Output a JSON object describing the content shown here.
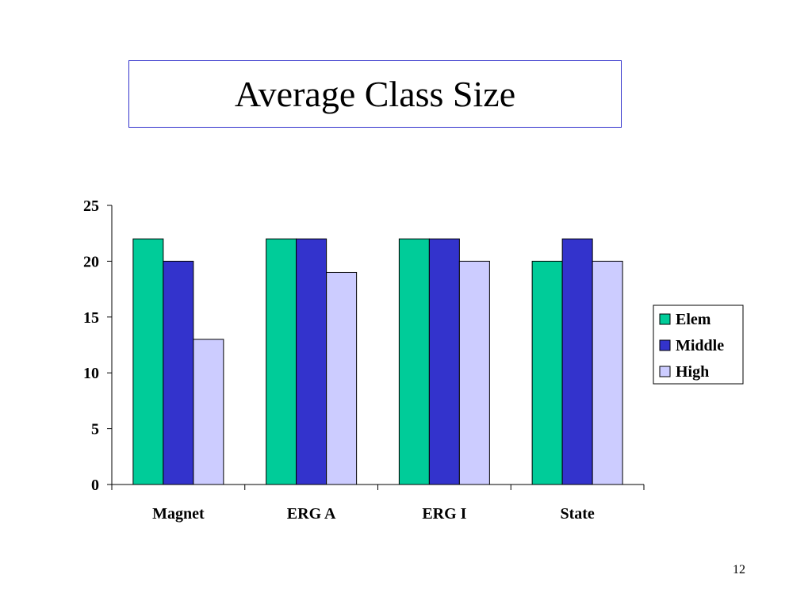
{
  "slide": {
    "title": "Average Class Size",
    "page_number": "12"
  },
  "colors": {
    "title_border": "#3333cc",
    "axis": "#000000"
  },
  "chart_data": {
    "type": "bar",
    "title": "",
    "xlabel": "",
    "ylabel": "",
    "categories": [
      "Magnet",
      "ERG A",
      "ERG I",
      "State"
    ],
    "series": [
      {
        "name": "Elem",
        "values": [
          22,
          22,
          22,
          20
        ],
        "color": "#00cc99"
      },
      {
        "name": "Middle",
        "values": [
          20,
          22,
          22,
          22
        ],
        "color": "#3333cc"
      },
      {
        "name": "High",
        "values": [
          13,
          19,
          20,
          20
        ],
        "color": "#ccccff"
      }
    ],
    "ylim": [
      0,
      25
    ],
    "yticks": [
      "0",
      "5",
      "10",
      "15",
      "20",
      "25"
    ],
    "grid": false,
    "legend": "right"
  }
}
